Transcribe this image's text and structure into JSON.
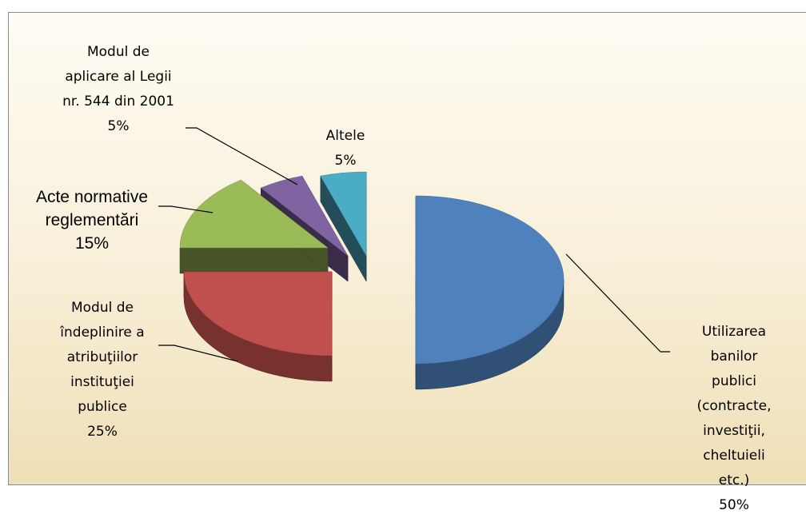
{
  "chart_data": {
    "type": "pie3d",
    "categories": [
      "Utilizarea\nbanilor publici\n(contracte,\ninvestiţii,\ncheltuieli etc.)",
      "Modul de\nîndeplinire a\natribuţiilor\ninstituţiei\npublice",
      "Acte normative\nreglementări",
      "Modul de\naplicare al Legii\nnr. 544 din 2001",
      "Altele"
    ],
    "values": [
      50,
      25,
      15,
      5,
      5
    ],
    "value_labels": [
      "50%",
      "25%",
      "15%",
      "5%",
      "5%"
    ],
    "colors": [
      "#4f81bd",
      "#c0504d",
      "#9bbb59",
      "#8064a2",
      "#4bacc6"
    ]
  }
}
